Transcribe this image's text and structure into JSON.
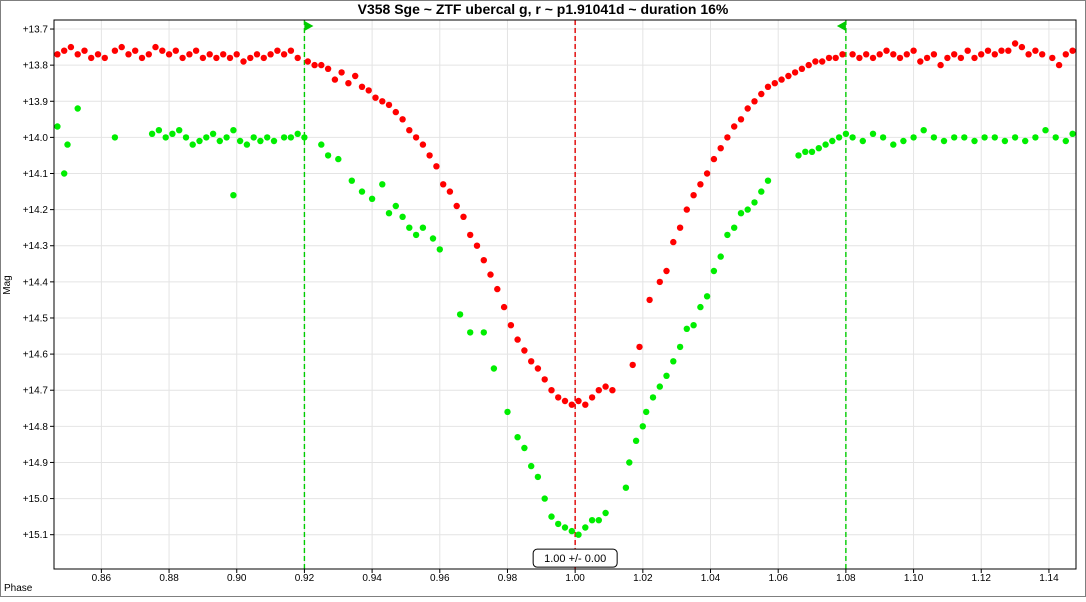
{
  "chart_data": {
    "type": "scatter",
    "title": "V358 Sge ~ ZTF ubercal g, r ~  p1.91041d ~ duration 16%",
    "xlabel": "Phase",
    "ylabel": "Mag",
    "xlim": [
      0.846,
      1.148
    ],
    "ylim": [
      13.675,
      15.195
    ],
    "y_inverted": true,
    "grid": true,
    "x_ticks": [
      "0.86",
      "0.88",
      "0.90",
      "0.92",
      "0.94",
      "0.96",
      "0.98",
      "1.00",
      "1.02",
      "1.04",
      "1.06",
      "1.08",
      "1.10",
      "1.12",
      "1.14"
    ],
    "x_tick_values": [
      0.86,
      0.88,
      0.9,
      0.92,
      0.94,
      0.96,
      0.98,
      1.0,
      1.02,
      1.04,
      1.06,
      1.08,
      1.1,
      1.12,
      1.14
    ],
    "y_ticks": [
      "+13.7",
      "+13.8",
      "+13.9",
      "+14.0",
      "+14.1",
      "+14.2",
      "+14.3",
      "+14.4",
      "+14.5",
      "+14.6",
      "+14.7",
      "+14.8",
      "+14.9",
      "+15.0",
      "+15.1"
    ],
    "y_tick_values": [
      13.7,
      13.8,
      13.9,
      14.0,
      14.1,
      14.2,
      14.3,
      14.4,
      14.5,
      14.6,
      14.7,
      14.8,
      14.9,
      15.0,
      15.1
    ],
    "vertical_lines": [
      {
        "x": 0.92,
        "color": "#00cc00",
        "style": "dashed",
        "flag": "right"
      },
      {
        "x": 1.0,
        "color": "#e00000",
        "style": "dashed"
      },
      {
        "x": 1.08,
        "color": "#00cc00",
        "style": "dashed",
        "flag": "left"
      }
    ],
    "annotation": {
      "x": 1.0,
      "y": 15.165,
      "text": "1.00 +/- 0.00"
    },
    "series": [
      {
        "color": "#ff0000",
        "points": [
          [
            0.847,
            13.77
          ],
          [
            0.849,
            13.76
          ],
          [
            0.851,
            13.75
          ],
          [
            0.853,
            13.77
          ],
          [
            0.855,
            13.76
          ],
          [
            0.857,
            13.78
          ],
          [
            0.859,
            13.77
          ],
          [
            0.861,
            13.78
          ],
          [
            0.864,
            13.76
          ],
          [
            0.866,
            13.75
          ],
          [
            0.868,
            13.77
          ],
          [
            0.87,
            13.76
          ],
          [
            0.872,
            13.78
          ],
          [
            0.874,
            13.77
          ],
          [
            0.876,
            13.75
          ],
          [
            0.878,
            13.76
          ],
          [
            0.88,
            13.77
          ],
          [
            0.882,
            13.76
          ],
          [
            0.884,
            13.78
          ],
          [
            0.886,
            13.77
          ],
          [
            0.888,
            13.76
          ],
          [
            0.89,
            13.78
          ],
          [
            0.892,
            13.77
          ],
          [
            0.894,
            13.78
          ],
          [
            0.896,
            13.77
          ],
          [
            0.898,
            13.78
          ],
          [
            0.9,
            13.77
          ],
          [
            0.902,
            13.79
          ],
          [
            0.904,
            13.78
          ],
          [
            0.906,
            13.77
          ],
          [
            0.908,
            13.78
          ],
          [
            0.91,
            13.77
          ],
          [
            0.912,
            13.76
          ],
          [
            0.914,
            13.77
          ],
          [
            0.916,
            13.76
          ],
          [
            0.918,
            13.78
          ],
          [
            0.921,
            13.79
          ],
          [
            0.923,
            13.8
          ],
          [
            0.925,
            13.8
          ],
          [
            0.927,
            13.81
          ],
          [
            0.929,
            13.84
          ],
          [
            0.931,
            13.82
          ],
          [
            0.933,
            13.85
          ],
          [
            0.935,
            13.83
          ],
          [
            0.937,
            13.86
          ],
          [
            0.939,
            13.87
          ],
          [
            0.941,
            13.89
          ],
          [
            0.943,
            13.9
          ],
          [
            0.945,
            13.91
          ],
          [
            0.947,
            13.93
          ],
          [
            0.949,
            13.95
          ],
          [
            0.951,
            13.98
          ],
          [
            0.953,
            14.0
          ],
          [
            0.955,
            14.02
          ],
          [
            0.957,
            14.05
          ],
          [
            0.959,
            14.08
          ],
          [
            0.961,
            14.13
          ],
          [
            0.963,
            14.15
          ],
          [
            0.965,
            14.19
          ],
          [
            0.967,
            14.22
          ],
          [
            0.969,
            14.27
          ],
          [
            0.971,
            14.3
          ],
          [
            0.973,
            14.34
          ],
          [
            0.975,
            14.38
          ],
          [
            0.977,
            14.42
          ],
          [
            0.979,
            14.47
          ],
          [
            0.981,
            14.52
          ],
          [
            0.983,
            14.56
          ],
          [
            0.985,
            14.59
          ],
          [
            0.987,
            14.62
          ],
          [
            0.989,
            14.64
          ],
          [
            0.991,
            14.67
          ],
          [
            0.993,
            14.7
          ],
          [
            0.995,
            14.72
          ],
          [
            0.997,
            14.73
          ],
          [
            0.999,
            14.74
          ],
          [
            1.001,
            14.73
          ],
          [
            1.003,
            14.74
          ],
          [
            1.005,
            14.72
          ],
          [
            1.007,
            14.7
          ],
          [
            1.009,
            14.69
          ],
          [
            1.011,
            14.7
          ],
          [
            1.017,
            14.63
          ],
          [
            1.019,
            14.58
          ],
          [
            1.022,
            14.45
          ],
          [
            1.025,
            14.4
          ],
          [
            1.027,
            14.37
          ],
          [
            1.029,
            14.29
          ],
          [
            1.031,
            14.25
          ],
          [
            1.033,
            14.2
          ],
          [
            1.035,
            14.16
          ],
          [
            1.037,
            14.13
          ],
          [
            1.039,
            14.1
          ],
          [
            1.041,
            14.06
          ],
          [
            1.043,
            14.03
          ],
          [
            1.045,
            14.0
          ],
          [
            1.047,
            13.97
          ],
          [
            1.049,
            13.95
          ],
          [
            1.051,
            13.92
          ],
          [
            1.053,
            13.9
          ],
          [
            1.055,
            13.88
          ],
          [
            1.057,
            13.86
          ],
          [
            1.059,
            13.85
          ],
          [
            1.061,
            13.84
          ],
          [
            1.063,
            13.83
          ],
          [
            1.065,
            13.82
          ],
          [
            1.067,
            13.81
          ],
          [
            1.069,
            13.8
          ],
          [
            1.071,
            13.79
          ],
          [
            1.073,
            13.79
          ],
          [
            1.075,
            13.78
          ],
          [
            1.077,
            13.78
          ],
          [
            1.079,
            13.77
          ],
          [
            1.082,
            13.77
          ],
          [
            1.084,
            13.78
          ],
          [
            1.086,
            13.77
          ],
          [
            1.088,
            13.78
          ],
          [
            1.09,
            13.77
          ],
          [
            1.092,
            13.76
          ],
          [
            1.094,
            13.77
          ],
          [
            1.096,
            13.78
          ],
          [
            1.098,
            13.77
          ],
          [
            1.1,
            13.76
          ],
          [
            1.102,
            13.79
          ],
          [
            1.104,
            13.78
          ],
          [
            1.106,
            13.77
          ],
          [
            1.108,
            13.8
          ],
          [
            1.11,
            13.78
          ],
          [
            1.112,
            13.77
          ],
          [
            1.114,
            13.78
          ],
          [
            1.116,
            13.76
          ],
          [
            1.118,
            13.78
          ],
          [
            1.12,
            13.77
          ],
          [
            1.122,
            13.76
          ],
          [
            1.124,
            13.77
          ],
          [
            1.126,
            13.76
          ],
          [
            1.128,
            13.76
          ],
          [
            1.13,
            13.74
          ],
          [
            1.132,
            13.75
          ],
          [
            1.134,
            13.77
          ],
          [
            1.136,
            13.76
          ],
          [
            1.138,
            13.77
          ],
          [
            1.141,
            13.78
          ],
          [
            1.143,
            13.8
          ],
          [
            1.145,
            13.77
          ],
          [
            1.147,
            13.76
          ]
        ]
      },
      {
        "color": "#00ee00",
        "points": [
          [
            0.847,
            13.97
          ],
          [
            0.849,
            14.1
          ],
          [
            0.85,
            14.02
          ],
          [
            0.853,
            13.92
          ],
          [
            0.864,
            14.0
          ],
          [
            0.875,
            13.99
          ],
          [
            0.877,
            13.98
          ],
          [
            0.879,
            14.0
          ],
          [
            0.881,
            13.99
          ],
          [
            0.883,
            13.98
          ],
          [
            0.885,
            14.0
          ],
          [
            0.887,
            14.02
          ],
          [
            0.889,
            14.01
          ],
          [
            0.891,
            14.0
          ],
          [
            0.893,
            13.99
          ],
          [
            0.895,
            14.01
          ],
          [
            0.897,
            14.0
          ],
          [
            0.899,
            13.98
          ],
          [
            0.899,
            14.16
          ],
          [
            0.901,
            14.01
          ],
          [
            0.903,
            14.02
          ],
          [
            0.905,
            14.0
          ],
          [
            0.907,
            14.01
          ],
          [
            0.909,
            14.0
          ],
          [
            0.911,
            14.01
          ],
          [
            0.914,
            14.0
          ],
          [
            0.916,
            14.0
          ],
          [
            0.918,
            13.99
          ],
          [
            0.92,
            14.0
          ],
          [
            0.925,
            14.02
          ],
          [
            0.927,
            14.05
          ],
          [
            0.93,
            14.06
          ],
          [
            0.934,
            14.12
          ],
          [
            0.937,
            14.15
          ],
          [
            0.94,
            14.17
          ],
          [
            0.943,
            14.13
          ],
          [
            0.945,
            14.21
          ],
          [
            0.947,
            14.19
          ],
          [
            0.949,
            14.22
          ],
          [
            0.951,
            14.25
          ],
          [
            0.953,
            14.27
          ],
          [
            0.955,
            14.25
          ],
          [
            0.958,
            14.28
          ],
          [
            0.96,
            14.31
          ],
          [
            0.966,
            14.49
          ],
          [
            0.969,
            14.54
          ],
          [
            0.973,
            14.54
          ],
          [
            0.976,
            14.64
          ],
          [
            0.98,
            14.76
          ],
          [
            0.983,
            14.83
          ],
          [
            0.985,
            14.86
          ],
          [
            0.987,
            14.91
          ],
          [
            0.989,
            14.94
          ],
          [
            0.991,
            15.0
          ],
          [
            0.993,
            15.05
          ],
          [
            0.995,
            15.07
          ],
          [
            0.997,
            15.08
          ],
          [
            0.999,
            15.09
          ],
          [
            1.001,
            15.1
          ],
          [
            1.003,
            15.08
          ],
          [
            1.005,
            15.06
          ],
          [
            1.007,
            15.06
          ],
          [
            1.009,
            15.04
          ],
          [
            1.015,
            14.97
          ],
          [
            1.016,
            14.9
          ],
          [
            1.018,
            14.84
          ],
          [
            1.02,
            14.8
          ],
          [
            1.021,
            14.76
          ],
          [
            1.023,
            14.72
          ],
          [
            1.025,
            14.69
          ],
          [
            1.027,
            14.66
          ],
          [
            1.029,
            14.62
          ],
          [
            1.031,
            14.58
          ],
          [
            1.033,
            14.53
          ],
          [
            1.035,
            14.52
          ],
          [
            1.037,
            14.47
          ],
          [
            1.039,
            14.44
          ],
          [
            1.041,
            14.37
          ],
          [
            1.043,
            14.33
          ],
          [
            1.045,
            14.27
          ],
          [
            1.047,
            14.25
          ],
          [
            1.049,
            14.21
          ],
          [
            1.051,
            14.2
          ],
          [
            1.053,
            14.18
          ],
          [
            1.055,
            14.15
          ],
          [
            1.057,
            14.12
          ],
          [
            1.066,
            14.05
          ],
          [
            1.068,
            14.04
          ],
          [
            1.07,
            14.04
          ],
          [
            1.072,
            14.03
          ],
          [
            1.074,
            14.02
          ],
          [
            1.076,
            14.01
          ],
          [
            1.078,
            14.0
          ],
          [
            1.08,
            13.99
          ],
          [
            1.082,
            14.0
          ],
          [
            1.085,
            14.01
          ],
          [
            1.088,
            13.99
          ],
          [
            1.091,
            14.0
          ],
          [
            1.094,
            14.02
          ],
          [
            1.097,
            14.01
          ],
          [
            1.1,
            14.0
          ],
          [
            1.103,
            13.98
          ],
          [
            1.106,
            14.0
          ],
          [
            1.109,
            14.01
          ],
          [
            1.112,
            14.0
          ],
          [
            1.115,
            14.0
          ],
          [
            1.118,
            14.01
          ],
          [
            1.121,
            14.0
          ],
          [
            1.124,
            14.0
          ],
          [
            1.127,
            14.01
          ],
          [
            1.13,
            14.0
          ],
          [
            1.133,
            14.01
          ],
          [
            1.136,
            14.0
          ],
          [
            1.139,
            13.98
          ],
          [
            1.142,
            14.0
          ],
          [
            1.145,
            14.01
          ],
          [
            1.147,
            13.99
          ]
        ]
      }
    ]
  }
}
